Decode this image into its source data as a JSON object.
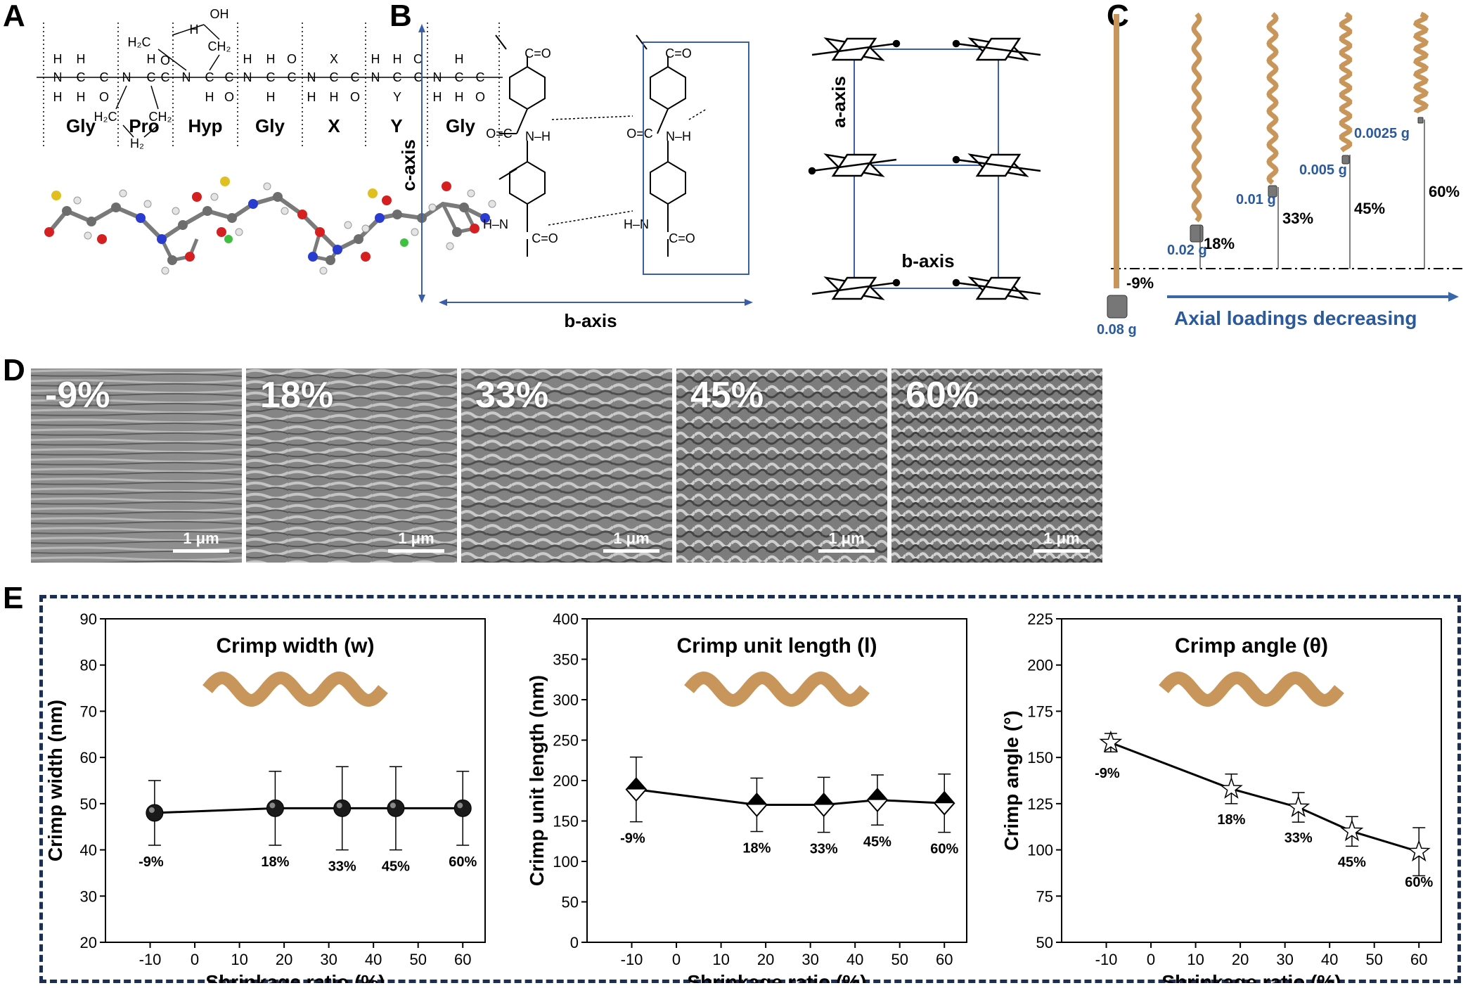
{
  "panels": {
    "A": "A",
    "B": "B",
    "C": "C",
    "D": "D",
    "E": "E"
  },
  "panel_a": {
    "residues": [
      "Gly",
      "Pro",
      "Hyp",
      "Gly",
      "X",
      "Y",
      "Gly"
    ],
    "atoms": {
      "N": "N",
      "H": "H",
      "C": "C",
      "O": "O",
      "X": "X",
      "Y": "Y",
      "OH": "OH",
      "H2C": "H₂C",
      "CH2": "CH₂",
      "H2": "H₂"
    }
  },
  "panel_b": {
    "c_axis": "c-axis",
    "b_axis": "b-axis",
    "a_axis": "a-axis",
    "b_axis_lattice": "b-axis"
  },
  "panel_c": {
    "fibers": [
      {
        "weight": "0.08 g",
        "shrink": "-9%"
      },
      {
        "weight": "0.02 g",
        "shrink": "18%"
      },
      {
        "weight": "0.01 g",
        "shrink": "33%"
      },
      {
        "weight": "0.005 g",
        "shrink": "45%"
      },
      {
        "weight": "0.0025 g",
        "shrink": "60%"
      }
    ],
    "arrow_label": "Axial loadings decreasing",
    "colors": {
      "fiber": "#c8955a",
      "text_blue": "#2a5a9a",
      "arrow": "#3a67a8"
    }
  },
  "panel_d": {
    "images": [
      {
        "label": "-9%",
        "scale": "1 μm"
      },
      {
        "label": "18%",
        "scale": "1 μm"
      },
      {
        "label": "33%",
        "scale": "1 μm"
      },
      {
        "label": "45%",
        "scale": "1 μm"
      },
      {
        "label": "60%",
        "scale": "1 μm"
      }
    ]
  },
  "chart_data": [
    {
      "type": "scatter",
      "title": "Crimp width (w)",
      "xlabel": "Shrinkage ratio (%)",
      "ylabel": "Crimp width (nm)",
      "xlim": [
        -20,
        65
      ],
      "ylim": [
        20,
        90
      ],
      "xticks": [
        "-10",
        "0",
        "10",
        "20",
        "30",
        "40",
        "50",
        "60"
      ],
      "yticks": [
        "20",
        "30",
        "40",
        "50",
        "60",
        "70",
        "80",
        "90"
      ],
      "x": [
        -9,
        18,
        33,
        45,
        60
      ],
      "y": [
        48,
        49,
        49,
        49,
        49
      ],
      "err": [
        7,
        8,
        9,
        9,
        8
      ],
      "point_labels": [
        "-9%",
        "18%",
        "33%",
        "45%",
        "60%"
      ],
      "marker": "sphere"
    },
    {
      "type": "scatter",
      "title": "Crimp unit length (l)",
      "xlabel": "Shrinkage ratio (%)",
      "ylabel": "Crimp unit length (nm)",
      "xlim": [
        -20,
        65
      ],
      "ylim": [
        0,
        400
      ],
      "xticks": [
        "-10",
        "0",
        "10",
        "20",
        "30",
        "40",
        "50",
        "60"
      ],
      "yticks": [
        "0",
        "50",
        "100",
        "150",
        "200",
        "250",
        "300",
        "350",
        "400"
      ],
      "x": [
        -9,
        18,
        33,
        45,
        60
      ],
      "y": [
        189,
        170,
        170,
        176,
        172
      ],
      "err": [
        40,
        33,
        34,
        31,
        36
      ],
      "point_labels": [
        "-9%",
        "18%",
        "33%",
        "45%",
        "60%"
      ],
      "marker": "diamond"
    },
    {
      "type": "scatter",
      "title": "Crimp angle (θ)",
      "xlabel": "Shrinkage ratio (%)",
      "ylabel": "Crimp angle (°)",
      "xlim": [
        -20,
        65
      ],
      "ylim": [
        50,
        225
      ],
      "xticks": [
        "-10",
        "0",
        "10",
        "20",
        "30",
        "40",
        "50",
        "60"
      ],
      "yticks": [
        "50",
        "75",
        "100",
        "125",
        "150",
        "175",
        "200",
        "225"
      ],
      "x": [
        -9,
        18,
        33,
        45,
        60
      ],
      "y": [
        158,
        133,
        123,
        110,
        99
      ],
      "err": [
        5,
        8,
        8,
        8,
        13
      ],
      "point_labels": [
        "-9%",
        "18%",
        "33%",
        "45%",
        "60%"
      ],
      "marker": "star"
    }
  ],
  "colors": {
    "frame": "#1b2f55",
    "crimp": "#c8955a"
  }
}
